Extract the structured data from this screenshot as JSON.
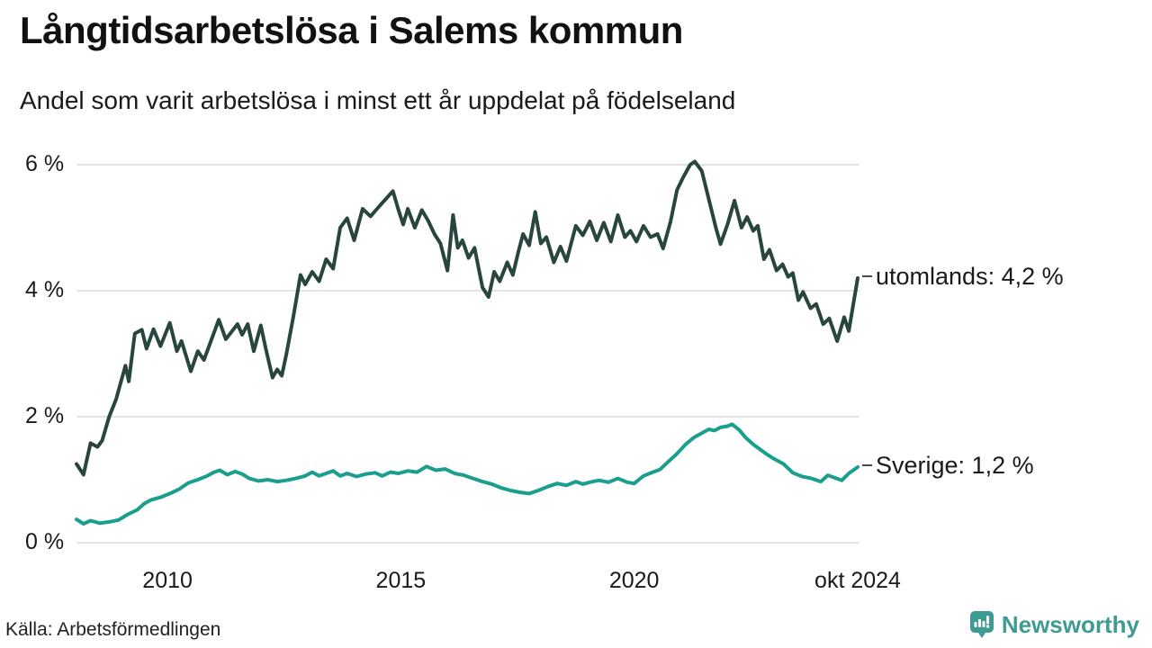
{
  "page": {
    "title": "Långtidsarbetslösa i Salems kommun",
    "subtitle": "Andel som varit arbetslösa i minst ett år uppdelat på födelseland",
    "source": "Källa: Arbetsförmedlingen",
    "brand": {
      "name": "Newsworthy",
      "color": "#3d9b93"
    }
  },
  "chart_data": {
    "type": "line",
    "title": "Långtidsarbetslösa i Salems kommun",
    "subtitle": "Andel som varit arbetslösa i minst ett år uppdelat på födelseland",
    "source": "Källa: Arbetsförmedlingen",
    "unit": "%",
    "grid": true,
    "background": "#ffffff",
    "gridline_color": "#e3e3e7",
    "tick_dash_color": "#4a4a4a",
    "x_range": [
      2008.05,
      2024.79
    ],
    "y_range": [
      0,
      6.3
    ],
    "y_ticks": [
      {
        "value": 6,
        "label": "6 %"
      },
      {
        "value": 4,
        "label": "4 %"
      },
      {
        "value": 2,
        "label": "2 %"
      },
      {
        "value": 0,
        "label": "0 %"
      }
    ],
    "x_ticks": [
      {
        "value": 2010,
        "label": "2010"
      },
      {
        "value": 2015,
        "label": "2015"
      },
      {
        "value": 2020,
        "label": "2020"
      },
      {
        "value": 2024.79,
        "label": "okt 2024"
      }
    ],
    "series": [
      {
        "name": "utomlands",
        "color": "#29463e",
        "stroke_width": 4,
        "end_label": "utomlands: 4,2 %",
        "last_value": 4.2,
        "points": [
          [
            2008.05,
            1.25
          ],
          [
            2008.2,
            1.08
          ],
          [
            2008.35,
            1.58
          ],
          [
            2008.5,
            1.52
          ],
          [
            2008.6,
            1.62
          ],
          [
            2008.75,
            2.0
          ],
          [
            2008.9,
            2.28
          ],
          [
            2009.0,
            2.55
          ],
          [
            2009.1,
            2.81
          ],
          [
            2009.17,
            2.56
          ],
          [
            2009.3,
            3.32
          ],
          [
            2009.45,
            3.38
          ],
          [
            2009.55,
            3.08
          ],
          [
            2009.7,
            3.39
          ],
          [
            2009.85,
            3.12
          ],
          [
            2010.05,
            3.49
          ],
          [
            2010.2,
            3.04
          ],
          [
            2010.3,
            3.2
          ],
          [
            2010.5,
            2.72
          ],
          [
            2010.65,
            3.04
          ],
          [
            2010.78,
            2.9
          ],
          [
            2011.1,
            3.54
          ],
          [
            2011.25,
            3.23
          ],
          [
            2011.5,
            3.47
          ],
          [
            2011.6,
            3.3
          ],
          [
            2011.72,
            3.47
          ],
          [
            2011.85,
            3.04
          ],
          [
            2012.0,
            3.45
          ],
          [
            2012.1,
            3.1
          ],
          [
            2012.25,
            2.62
          ],
          [
            2012.35,
            2.75
          ],
          [
            2012.45,
            2.65
          ],
          [
            2012.55,
            3.0
          ],
          [
            2012.7,
            3.6
          ],
          [
            2012.85,
            4.25
          ],
          [
            2012.95,
            4.1
          ],
          [
            2013.1,
            4.3
          ],
          [
            2013.25,
            4.15
          ],
          [
            2013.4,
            4.5
          ],
          [
            2013.55,
            4.35
          ],
          [
            2013.7,
            5.0
          ],
          [
            2013.85,
            5.15
          ],
          [
            2014.0,
            4.8
          ],
          [
            2014.18,
            5.3
          ],
          [
            2014.35,
            5.18
          ],
          [
            2014.55,
            5.35
          ],
          [
            2014.83,
            5.58
          ],
          [
            2014.95,
            5.28
          ],
          [
            2015.05,
            5.05
          ],
          [
            2015.15,
            5.3
          ],
          [
            2015.3,
            5.0
          ],
          [
            2015.45,
            5.28
          ],
          [
            2015.58,
            5.12
          ],
          [
            2015.72,
            4.9
          ],
          [
            2015.85,
            4.75
          ],
          [
            2016.0,
            4.32
          ],
          [
            2016.12,
            5.2
          ],
          [
            2016.22,
            4.68
          ],
          [
            2016.32,
            4.8
          ],
          [
            2016.45,
            4.52
          ],
          [
            2016.58,
            4.68
          ],
          [
            2016.75,
            4.05
          ],
          [
            2016.88,
            3.9
          ],
          [
            2017.0,
            4.3
          ],
          [
            2017.12,
            4.15
          ],
          [
            2017.28,
            4.45
          ],
          [
            2017.4,
            4.25
          ],
          [
            2017.52,
            4.62
          ],
          [
            2017.62,
            4.9
          ],
          [
            2017.75,
            4.72
          ],
          [
            2017.88,
            5.25
          ],
          [
            2018.0,
            4.75
          ],
          [
            2018.12,
            4.85
          ],
          [
            2018.28,
            4.45
          ],
          [
            2018.42,
            4.7
          ],
          [
            2018.55,
            4.47
          ],
          [
            2018.75,
            5.03
          ],
          [
            2018.9,
            4.88
          ],
          [
            2019.05,
            5.1
          ],
          [
            2019.2,
            4.8
          ],
          [
            2019.35,
            5.08
          ],
          [
            2019.5,
            4.78
          ],
          [
            2019.65,
            5.2
          ],
          [
            2019.8,
            4.85
          ],
          [
            2019.92,
            4.95
          ],
          [
            2020.05,
            4.78
          ],
          [
            2020.2,
            5.03
          ],
          [
            2020.35,
            4.85
          ],
          [
            2020.5,
            4.9
          ],
          [
            2020.62,
            4.67
          ],
          [
            2020.78,
            5.1
          ],
          [
            2020.92,
            5.6
          ],
          [
            2021.05,
            5.8
          ],
          [
            2021.2,
            6.0
          ],
          [
            2021.3,
            6.05
          ],
          [
            2021.45,
            5.9
          ],
          [
            2021.6,
            5.45
          ],
          [
            2021.75,
            5.0
          ],
          [
            2021.85,
            4.74
          ],
          [
            2022.0,
            5.05
          ],
          [
            2022.15,
            5.43
          ],
          [
            2022.3,
            5.0
          ],
          [
            2022.42,
            5.17
          ],
          [
            2022.55,
            4.95
          ],
          [
            2022.65,
            5.03
          ],
          [
            2022.78,
            4.5
          ],
          [
            2022.9,
            4.65
          ],
          [
            2023.05,
            4.32
          ],
          [
            2023.18,
            4.42
          ],
          [
            2023.3,
            4.22
          ],
          [
            2023.4,
            4.28
          ],
          [
            2023.52,
            3.85
          ],
          [
            2023.62,
            3.98
          ],
          [
            2023.78,
            3.72
          ],
          [
            2023.9,
            3.79
          ],
          [
            2024.05,
            3.47
          ],
          [
            2024.18,
            3.56
          ],
          [
            2024.35,
            3.2
          ],
          [
            2024.5,
            3.58
          ],
          [
            2024.6,
            3.36
          ],
          [
            2024.79,
            4.2
          ]
        ]
      },
      {
        "name": "Sverige",
        "color": "#1a9e8e",
        "stroke_width": 4,
        "end_label": "Sverige: 1,2 %",
        "last_value": 1.2,
        "points": [
          [
            2008.05,
            0.37
          ],
          [
            2008.2,
            0.3
          ],
          [
            2008.35,
            0.35
          ],
          [
            2008.55,
            0.31
          ],
          [
            2008.75,
            0.33
          ],
          [
            2008.95,
            0.36
          ],
          [
            2009.15,
            0.45
          ],
          [
            2009.35,
            0.52
          ],
          [
            2009.5,
            0.62
          ],
          [
            2009.65,
            0.68
          ],
          [
            2009.85,
            0.72
          ],
          [
            2010.05,
            0.78
          ],
          [
            2010.25,
            0.85
          ],
          [
            2010.45,
            0.95
          ],
          [
            2010.65,
            1.0
          ],
          [
            2010.85,
            1.06
          ],
          [
            2011.0,
            1.12
          ],
          [
            2011.12,
            1.15
          ],
          [
            2011.28,
            1.08
          ],
          [
            2011.45,
            1.13
          ],
          [
            2011.6,
            1.09
          ],
          [
            2011.75,
            1.02
          ],
          [
            2011.95,
            0.98
          ],
          [
            2012.15,
            1.0
          ],
          [
            2012.35,
            0.97
          ],
          [
            2012.55,
            0.99
          ],
          [
            2012.75,
            1.02
          ],
          [
            2012.95,
            1.06
          ],
          [
            2013.1,
            1.12
          ],
          [
            2013.25,
            1.06
          ],
          [
            2013.4,
            1.1
          ],
          [
            2013.55,
            1.14
          ],
          [
            2013.7,
            1.06
          ],
          [
            2013.85,
            1.1
          ],
          [
            2014.05,
            1.05
          ],
          [
            2014.25,
            1.09
          ],
          [
            2014.45,
            1.11
          ],
          [
            2014.6,
            1.06
          ],
          [
            2014.78,
            1.12
          ],
          [
            2014.95,
            1.1
          ],
          [
            2015.15,
            1.14
          ],
          [
            2015.35,
            1.12
          ],
          [
            2015.55,
            1.21
          ],
          [
            2015.75,
            1.15
          ],
          [
            2015.95,
            1.17
          ],
          [
            2016.15,
            1.1
          ],
          [
            2016.35,
            1.07
          ],
          [
            2016.55,
            1.02
          ],
          [
            2016.75,
            0.97
          ],
          [
            2016.95,
            0.93
          ],
          [
            2017.15,
            0.87
          ],
          [
            2017.35,
            0.83
          ],
          [
            2017.55,
            0.8
          ],
          [
            2017.75,
            0.78
          ],
          [
            2017.95,
            0.83
          ],
          [
            2018.15,
            0.89
          ],
          [
            2018.35,
            0.94
          ],
          [
            2018.55,
            0.91
          ],
          [
            2018.75,
            0.97
          ],
          [
            2018.9,
            0.93
          ],
          [
            2019.05,
            0.96
          ],
          [
            2019.25,
            0.99
          ],
          [
            2019.45,
            0.96
          ],
          [
            2019.65,
            1.02
          ],
          [
            2019.85,
            0.96
          ],
          [
            2020.0,
            0.94
          ],
          [
            2020.2,
            1.06
          ],
          [
            2020.4,
            1.12
          ],
          [
            2020.55,
            1.16
          ],
          [
            2020.72,
            1.28
          ],
          [
            2020.9,
            1.4
          ],
          [
            2021.1,
            1.56
          ],
          [
            2021.28,
            1.67
          ],
          [
            2021.45,
            1.74
          ],
          [
            2021.6,
            1.8
          ],
          [
            2021.72,
            1.78
          ],
          [
            2021.85,
            1.83
          ],
          [
            2022.0,
            1.85
          ],
          [
            2022.1,
            1.88
          ],
          [
            2022.25,
            1.79
          ],
          [
            2022.4,
            1.66
          ],
          [
            2022.55,
            1.56
          ],
          [
            2022.7,
            1.48
          ],
          [
            2022.85,
            1.4
          ],
          [
            2023.0,
            1.33
          ],
          [
            2023.2,
            1.25
          ],
          [
            2023.4,
            1.11
          ],
          [
            2023.6,
            1.05
          ],
          [
            2023.8,
            1.02
          ],
          [
            2024.0,
            0.97
          ],
          [
            2024.15,
            1.07
          ],
          [
            2024.3,
            1.03
          ],
          [
            2024.45,
            0.99
          ],
          [
            2024.6,
            1.1
          ],
          [
            2024.79,
            1.2
          ]
        ]
      }
    ],
    "legend_position": "right-of-line-ends"
  }
}
